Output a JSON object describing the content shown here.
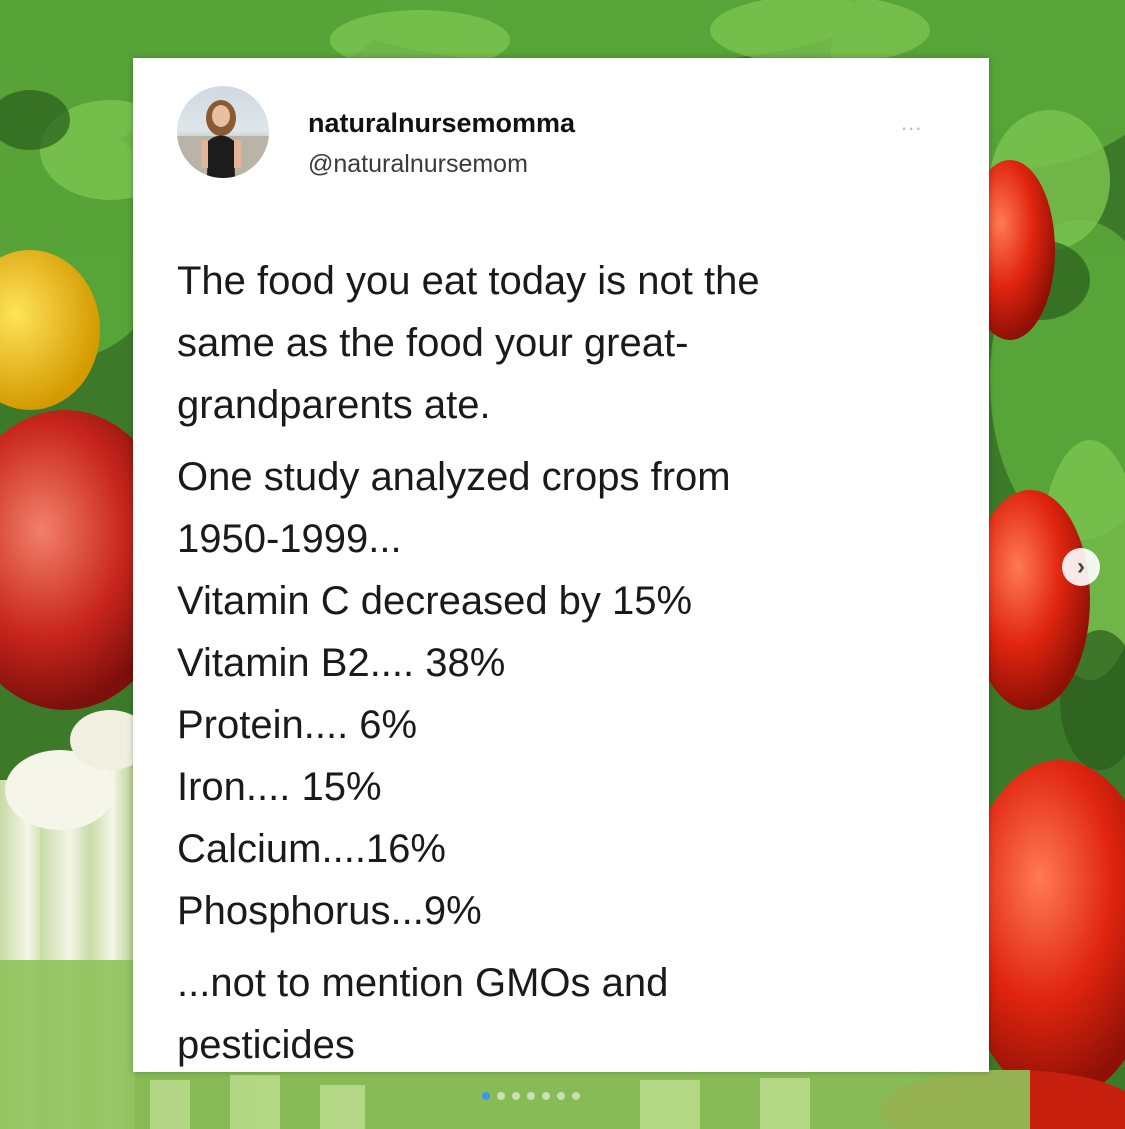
{
  "post": {
    "username": "naturalnursemomma",
    "handle": "@naturalnursemom",
    "more_label": "...",
    "paragraphs": [
      [
        "The food you eat today is not the",
        "same as the food your great-",
        "grandparents ate."
      ],
      [
        "One study analyzed crops from",
        "1950-1999...",
        "Vitamin C decreased by 15%",
        "Vitamin B2.... 38%",
        "Protein.... 6%",
        "Iron.... 15%",
        "Calcium....16%",
        "Phosphorus...9%"
      ],
      [
        "...not to mention GMOs and",
        "pesticides"
      ]
    ]
  },
  "carousel": {
    "next_label": "›",
    "slide_count": 7,
    "active_index": 0
  },
  "icons": {
    "avatar": "profile-photo",
    "more": "ellipsis-icon",
    "next": "chevron-right-icon"
  },
  "colors": {
    "card": "#ffffff",
    "text": "#1a1a1a",
    "handle": "#3a3a3a",
    "dot_active": "#3897f0"
  }
}
